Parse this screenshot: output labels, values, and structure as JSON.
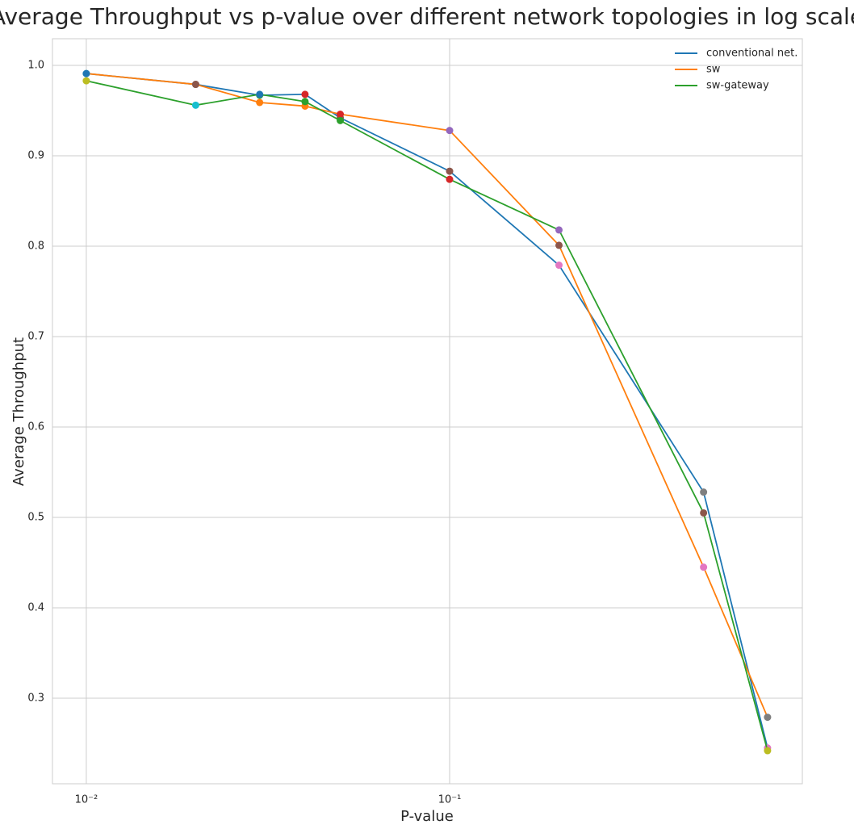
{
  "chart_data": {
    "type": "line",
    "title": "Average Throughput vs p-value over different network topologies in log scale",
    "x_label": "P-value",
    "y_label": "Average Throughput",
    "x": [
      0.01,
      0.02,
      0.03,
      0.04,
      0.05,
      0.1,
      0.2,
      0.5,
      0.75
    ],
    "x_log": true,
    "xlim": [
      0.00807,
      0.935
    ],
    "xticks": [
      {
        "value": 0.01,
        "label": "10⁻²"
      },
      {
        "value": 0.1,
        "label": "10⁻¹"
      }
    ],
    "ylim": [
      0.2054,
      1.0295
    ],
    "yticks": [
      {
        "value": 0.3,
        "label": "0.3"
      },
      {
        "value": 0.4,
        "label": "0.4"
      },
      {
        "value": 0.5,
        "label": "0.5"
      },
      {
        "value": 0.6,
        "label": "0.6"
      },
      {
        "value": 0.7,
        "label": "0.7"
      },
      {
        "value": 0.8,
        "label": "0.8"
      },
      {
        "value": 0.9,
        "label": "0.9"
      },
      {
        "value": 1.0,
        "label": "1.0"
      }
    ],
    "grid": true,
    "legend": "upper-right",
    "series": [
      {
        "name": "conventional net.",
        "color": "#1f77b4",
        "values": [
          0.991,
          0.979,
          0.967,
          0.968,
          0.942,
          0.883,
          0.779,
          0.528,
          0.245
        ],
        "marker_colors": [
          "#17becf",
          "#7f7f7f",
          "#2ca02c",
          "#d62728",
          "#8c564b",
          "#8c564b",
          "#e377c2",
          "#7f7f7f",
          "#e377c2"
        ]
      },
      {
        "name": "sw",
        "color": "#ff7f0e",
        "values": [
          0.991,
          0.979,
          0.959,
          0.955,
          0.946,
          0.928,
          0.801,
          0.445,
          0.279
        ],
        "marker_colors": [
          "#1f77b4",
          "#8c564b",
          "#ff7f0e",
          "#ff7f0e",
          "#d62728",
          "#9467bd",
          "#8c564b",
          "#e377c2",
          "#7f7f7f"
        ]
      },
      {
        "name": "sw-gateway",
        "color": "#2ca02c",
        "values": [
          0.983,
          0.956,
          0.968,
          0.96,
          0.939,
          0.874,
          0.818,
          0.505,
          0.242
        ],
        "marker_colors": [
          "#bcbd22",
          "#17becf",
          "#1f77b4",
          "#2ca02c",
          "#2ca02c",
          "#d62728",
          "#9467bd",
          "#8c564b",
          "#bcbd22"
        ]
      }
    ]
  }
}
